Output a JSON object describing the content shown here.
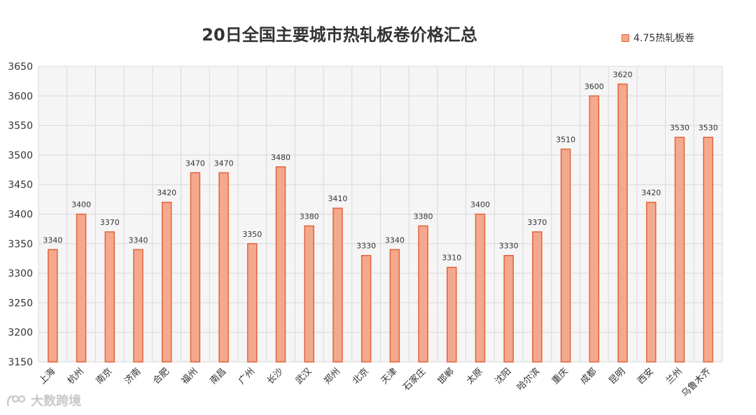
{
  "chart_data": {
    "type": "bar",
    "title": "20日全国主要城市热轧板卷价格汇总",
    "categories": [
      "上海",
      "杭州",
      "南京",
      "济南",
      "合肥",
      "福州",
      "南昌",
      "广州",
      "长沙",
      "武汉",
      "郑州",
      "北京",
      "天津",
      "石家庄",
      "邯郸",
      "太原",
      "沈阳",
      "哈尔滨",
      "重庆",
      "成都",
      "昆明",
      "西安",
      "兰州",
      "乌鲁木齐"
    ],
    "series": [
      {
        "name": "4.75热轧板卷",
        "values": [
          3340,
          3400,
          3370,
          3340,
          3420,
          3470,
          3470,
          3350,
          3480,
          3380,
          3410,
          3330,
          3340,
          3380,
          3310,
          3400,
          3330,
          3370,
          3510,
          3600,
          3620,
          3420,
          3530,
          3530
        ]
      }
    ],
    "ylim": [
      3150,
      3650
    ],
    "yticks": [
      3150,
      3200,
      3250,
      3300,
      3350,
      3400,
      3450,
      3500,
      3550,
      3600,
      3650
    ],
    "grid": true,
    "legend_position": "top-right",
    "colors": {
      "bar_fill": "#f4a98e",
      "bar_stroke": "#e2643a",
      "plot_bg": "#f5f5f5",
      "grid": "#d9d9d9"
    }
  },
  "watermark": {
    "text": "大数跨境"
  }
}
